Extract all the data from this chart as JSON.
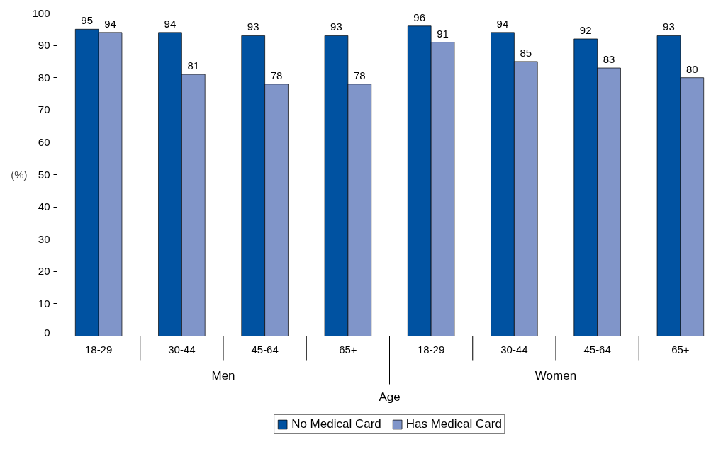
{
  "chart_data": {
    "type": "bar",
    "xlabel": "Age",
    "ylabel": "(%)",
    "categories": [
      "18-29",
      "30-44",
      "45-64",
      "65+",
      "18-29",
      "30-44",
      "45-64",
      "65+"
    ],
    "series": [
      {
        "name": "No Medical Card",
        "color": "#0052a1",
        "values": [
          95,
          94,
          93,
          93,
          96,
          94,
          92,
          93
        ]
      },
      {
        "name": "Has Medical Card",
        "color": "#8095c9",
        "values": [
          94,
          81,
          78,
          78,
          91,
          85,
          83,
          80
        ]
      }
    ],
    "annotations": [
      "Men",
      "Women"
    ],
    "ylim": [
      0,
      100
    ],
    "yticks": [
      0,
      10,
      20,
      30,
      40,
      50,
      60,
      70,
      80,
      90,
      100
    ],
    "data_labels": true,
    "grid": false,
    "legend": "bottom"
  }
}
